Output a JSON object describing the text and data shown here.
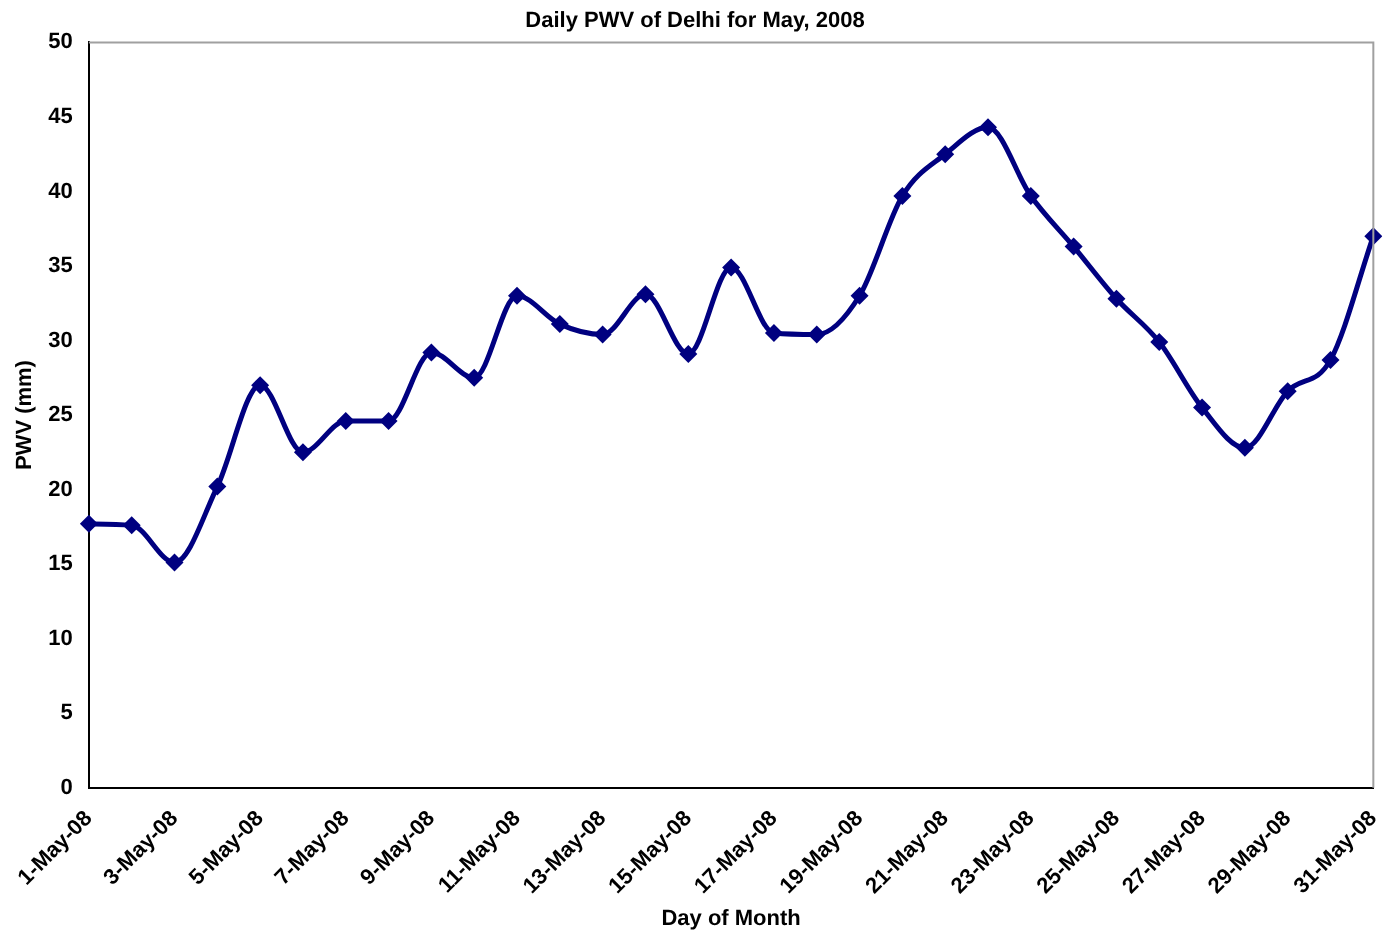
{
  "chart_data": {
    "type": "line",
    "title": "Daily PWV of Delhi for May, 2008",
    "xlabel": "Day of Month",
    "ylabel": "PWV (mm)",
    "categories": [
      "1-May-08",
      null,
      "3-May-08",
      null,
      "5-May-08",
      null,
      "7-May-08",
      null,
      "9-May-08",
      null,
      "11-May-08",
      null,
      "13-May-08",
      null,
      "15-May-08",
      null,
      "17-May-08",
      null,
      "19-May-08",
      null,
      "21-May-08",
      null,
      "23-May-08",
      null,
      "25-May-08",
      null,
      "27-May-08",
      null,
      "29-May-08",
      null,
      "31-May-08"
    ],
    "series": [
      {
        "color": "#000080",
        "values": [
          17.7,
          17.6,
          15.1,
          20.2,
          27.0,
          22.5,
          24.6,
          24.6,
          29.2,
          27.5,
          33.0,
          31.1,
          30.4,
          33.1,
          29.1,
          34.9,
          30.5,
          30.4,
          33.0,
          39.7,
          42.5,
          44.3,
          39.7,
          36.3,
          32.8,
          29.9,
          25.5,
          22.8,
          26.6,
          28.7,
          37.0
        ]
      }
    ],
    "ylim": [
      0,
      50
    ],
    "yticks": [
      0,
      5,
      10,
      15,
      20,
      25,
      30,
      35,
      40,
      45,
      50
    ],
    "grid": false,
    "legend": false,
    "marker": "diamond",
    "line_style": "solid"
  }
}
